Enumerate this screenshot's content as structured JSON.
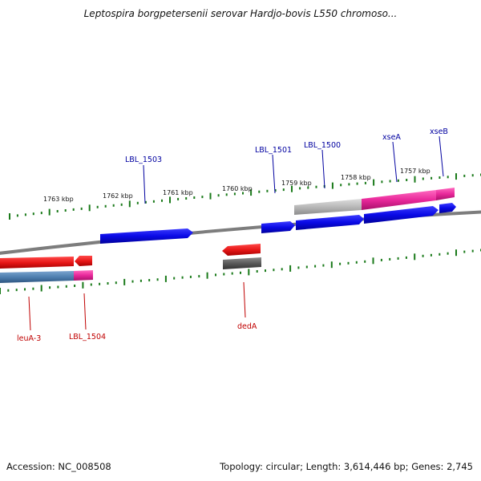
{
  "title": "Leptospira borgpetersenii serovar Hardjo-bovis L550 chromoso...",
  "footer": {
    "accession": "Accession: NC_008508",
    "topology": "Topology: circular; Length: 3,614,446 bp; Genes: 2,745"
  },
  "colors": {
    "forward_gene": "#0a0ae6",
    "reverse_gene": "#e81818",
    "cog_highlight": "#e8289a",
    "steelblue_feature": "#4f7fb0",
    "grey_feature": "#b9b9b9",
    "dark_grey_feature": "#5a5a5a",
    "backbone": "#7d7d7d",
    "ticks": "#1a7a1a",
    "forward_label": "#0000a0",
    "reverse_label": "#c00000"
  },
  "kbp_labels": [
    "1763 kbp",
    "1762 kbp",
    "1761 kbp",
    "1760 kbp",
    "1759 kbp",
    "1758 kbp",
    "1757 kbp"
  ],
  "genes_top": [
    {
      "label": "LBL_1503"
    },
    {
      "label": "LBL_1501"
    },
    {
      "label": "LBL_1500"
    },
    {
      "label": "xseA"
    },
    {
      "label": "xseB"
    }
  ],
  "genes_bottom": [
    {
      "label": "leuA-3"
    },
    {
      "label": "LBL_1504"
    },
    {
      "label": "dedA"
    }
  ]
}
